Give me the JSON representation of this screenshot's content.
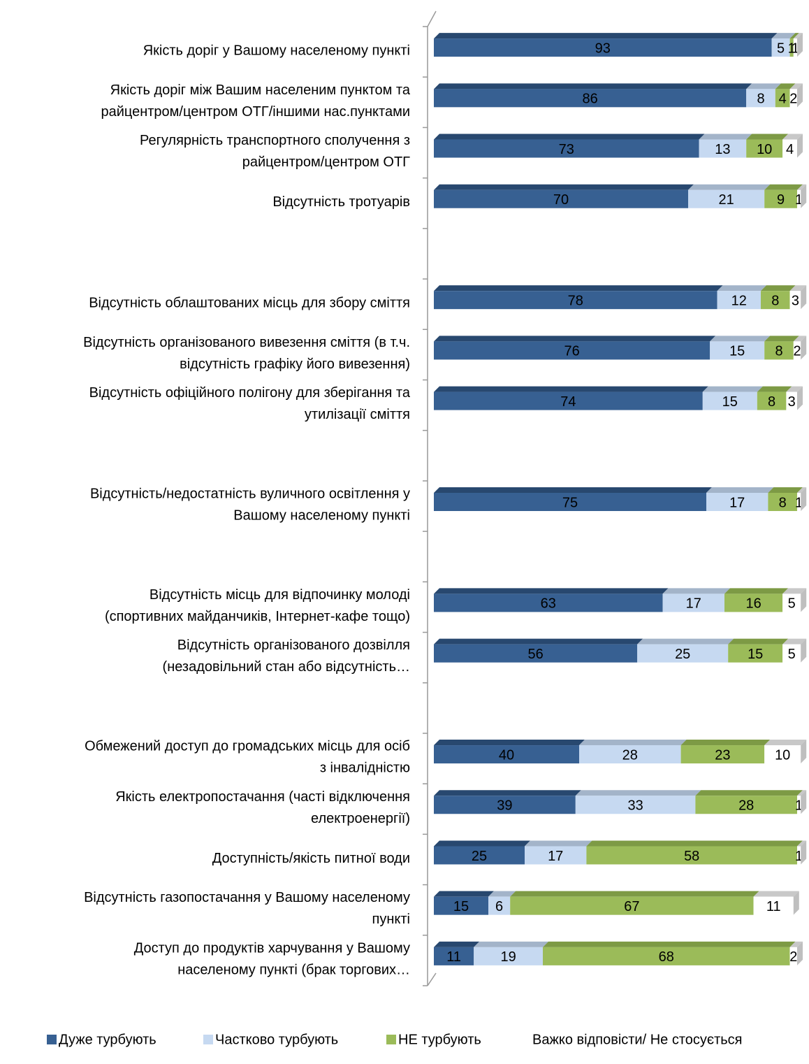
{
  "chart_data": {
    "type": "bar",
    "stacked": true,
    "categories": [
      "Якість доріг у Вашому населеному пункті",
      "Якість доріг між Вашим населеним пунктом та\nрайцентром/центром ОТГ/іншими нас.пунктами",
      "Регулярність транспортного сполучення з\nрайцентром/центром ОТГ",
      "Відсутність тротуарів",
      null,
      "Відсутність облаштованих місць для збору сміття",
      "Відсутність організованого вивезення сміття (в т.ч.\nвідсутність графіку його вивезення)",
      "Відсутність офіційного полігону для зберігання та\nутилізації сміття",
      null,
      "Відсутність/недостатність вуличного освітлення у\nВашому населеному пункті",
      null,
      "Відсутність місць для відпочинку молоді\n(спортивних майданчиків, Інтернет-кафе тощо)",
      "Відсутність організованого дозвілля\n(незадовільний стан або відсутність…",
      null,
      "Обмежений доступ до громадських місць для осіб\nз інвалідністю",
      "Якість електропостачання (часті відключення\nелектроенергії)",
      "Доступність/якість питної води",
      "Відсутність газопостачання у Вашому населеному\nпункті",
      "Доступ до продуктів харчування у Вашому\nнаселеному пункті (брак торгових…"
    ],
    "series": [
      {
        "name": "Дуже турбують",
        "color": "#376092",
        "values": [
          93,
          86,
          73,
          70,
          null,
          78,
          76,
          74,
          null,
          75,
          null,
          63,
          56,
          null,
          40,
          39,
          25,
          15,
          11
        ]
      },
      {
        "name": "Частково турбують",
        "color": "#c6d9f1",
        "values": [
          5,
          8,
          13,
          21,
          null,
          12,
          15,
          15,
          null,
          17,
          null,
          17,
          25,
          null,
          28,
          33,
          17,
          6,
          19
        ]
      },
      {
        "name": "НЕ турбують",
        "color": "#9bbb59",
        "values": [
          1,
          4,
          10,
          9,
          null,
          8,
          8,
          8,
          null,
          8,
          null,
          16,
          15,
          null,
          23,
          28,
          58,
          67,
          68
        ]
      },
      {
        "name": "Важко відповісти/ Не стосується",
        "color": "#ffffff",
        "values": [
          1,
          2,
          4,
          1,
          null,
          3,
          2,
          3,
          null,
          1,
          null,
          5,
          5,
          null,
          10,
          1,
          1,
          11,
          2
        ]
      }
    ]
  }
}
